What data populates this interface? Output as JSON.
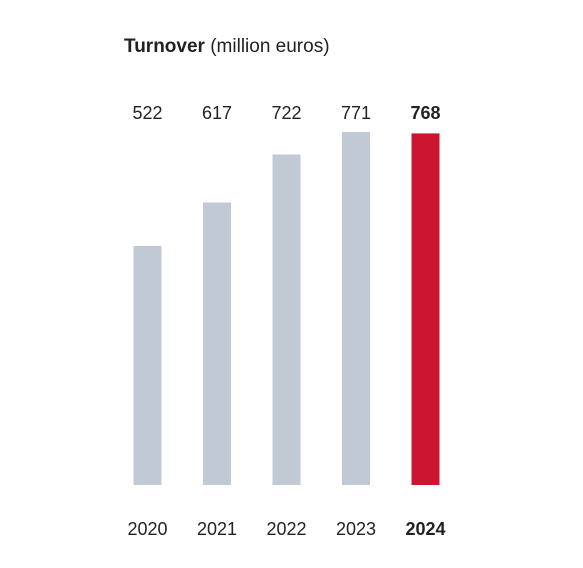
{
  "chart_data": {
    "type": "bar",
    "title_bold": "Turnover",
    "title_rest": "(million euros)",
    "categories": [
      "2020",
      "2021",
      "2022",
      "2023",
      "2024"
    ],
    "values": [
      522,
      617,
      722,
      771,
      768
    ],
    "highlight_index": 4,
    "colors": {
      "bar": "#c1c9d4",
      "highlight": "#cc1630",
      "text": "#222222"
    },
    "xlabel": "",
    "ylabel": "",
    "grid": false
  }
}
